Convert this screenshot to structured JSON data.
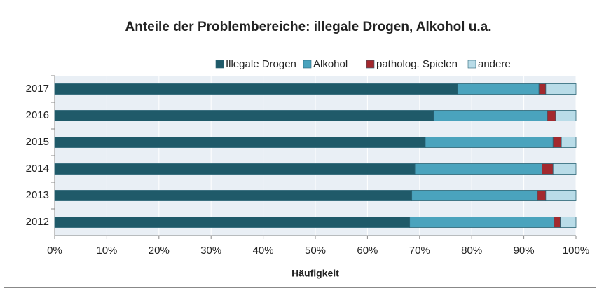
{
  "chart_data": {
    "type": "stacked_barh",
    "title": "Anteile der Problembereiche: illegale Drogen, Alkohol u.a.",
    "x_label": "Häufigkeit",
    "categories": [
      "2017",
      "2016",
      "2015",
      "2014",
      "2013",
      "2012"
    ],
    "series": [
      {
        "name": "Illegale Drogen",
        "color": "#1f5a69",
        "values": [
          77.3,
          72.7,
          71.1,
          69.1,
          68.5,
          68.1
        ]
      },
      {
        "name": "Alkohol",
        "color": "#4aa3bd",
        "values": [
          15.6,
          21.8,
          24.5,
          24.4,
          24.1,
          27.7
        ]
      },
      {
        "name": "patholog. Spielen",
        "color": "#a3292e",
        "values": [
          1.3,
          1.6,
          1.6,
          2.1,
          1.6,
          1.2
        ]
      },
      {
        "name": "andere",
        "color": "#b9dce8",
        "values": [
          5.8,
          3.9,
          2.8,
          4.4,
          5.8,
          3.0
        ]
      }
    ],
    "xlim": [
      0,
      100
    ],
    "xticks": [
      {
        "value": 0,
        "label": "0%"
      },
      {
        "value": 10,
        "label": "10%"
      },
      {
        "value": 20,
        "label": "20%"
      },
      {
        "value": 30,
        "label": "30%"
      },
      {
        "value": 40,
        "label": "40%"
      },
      {
        "value": 50,
        "label": "50%"
      },
      {
        "value": 60,
        "label": "60%"
      },
      {
        "value": 70,
        "label": "70%"
      },
      {
        "value": 80,
        "label": "80%"
      },
      {
        "value": 90,
        "label": "90%"
      },
      {
        "value": 100,
        "label": "100%"
      }
    ],
    "grid": true,
    "legend": "top"
  }
}
